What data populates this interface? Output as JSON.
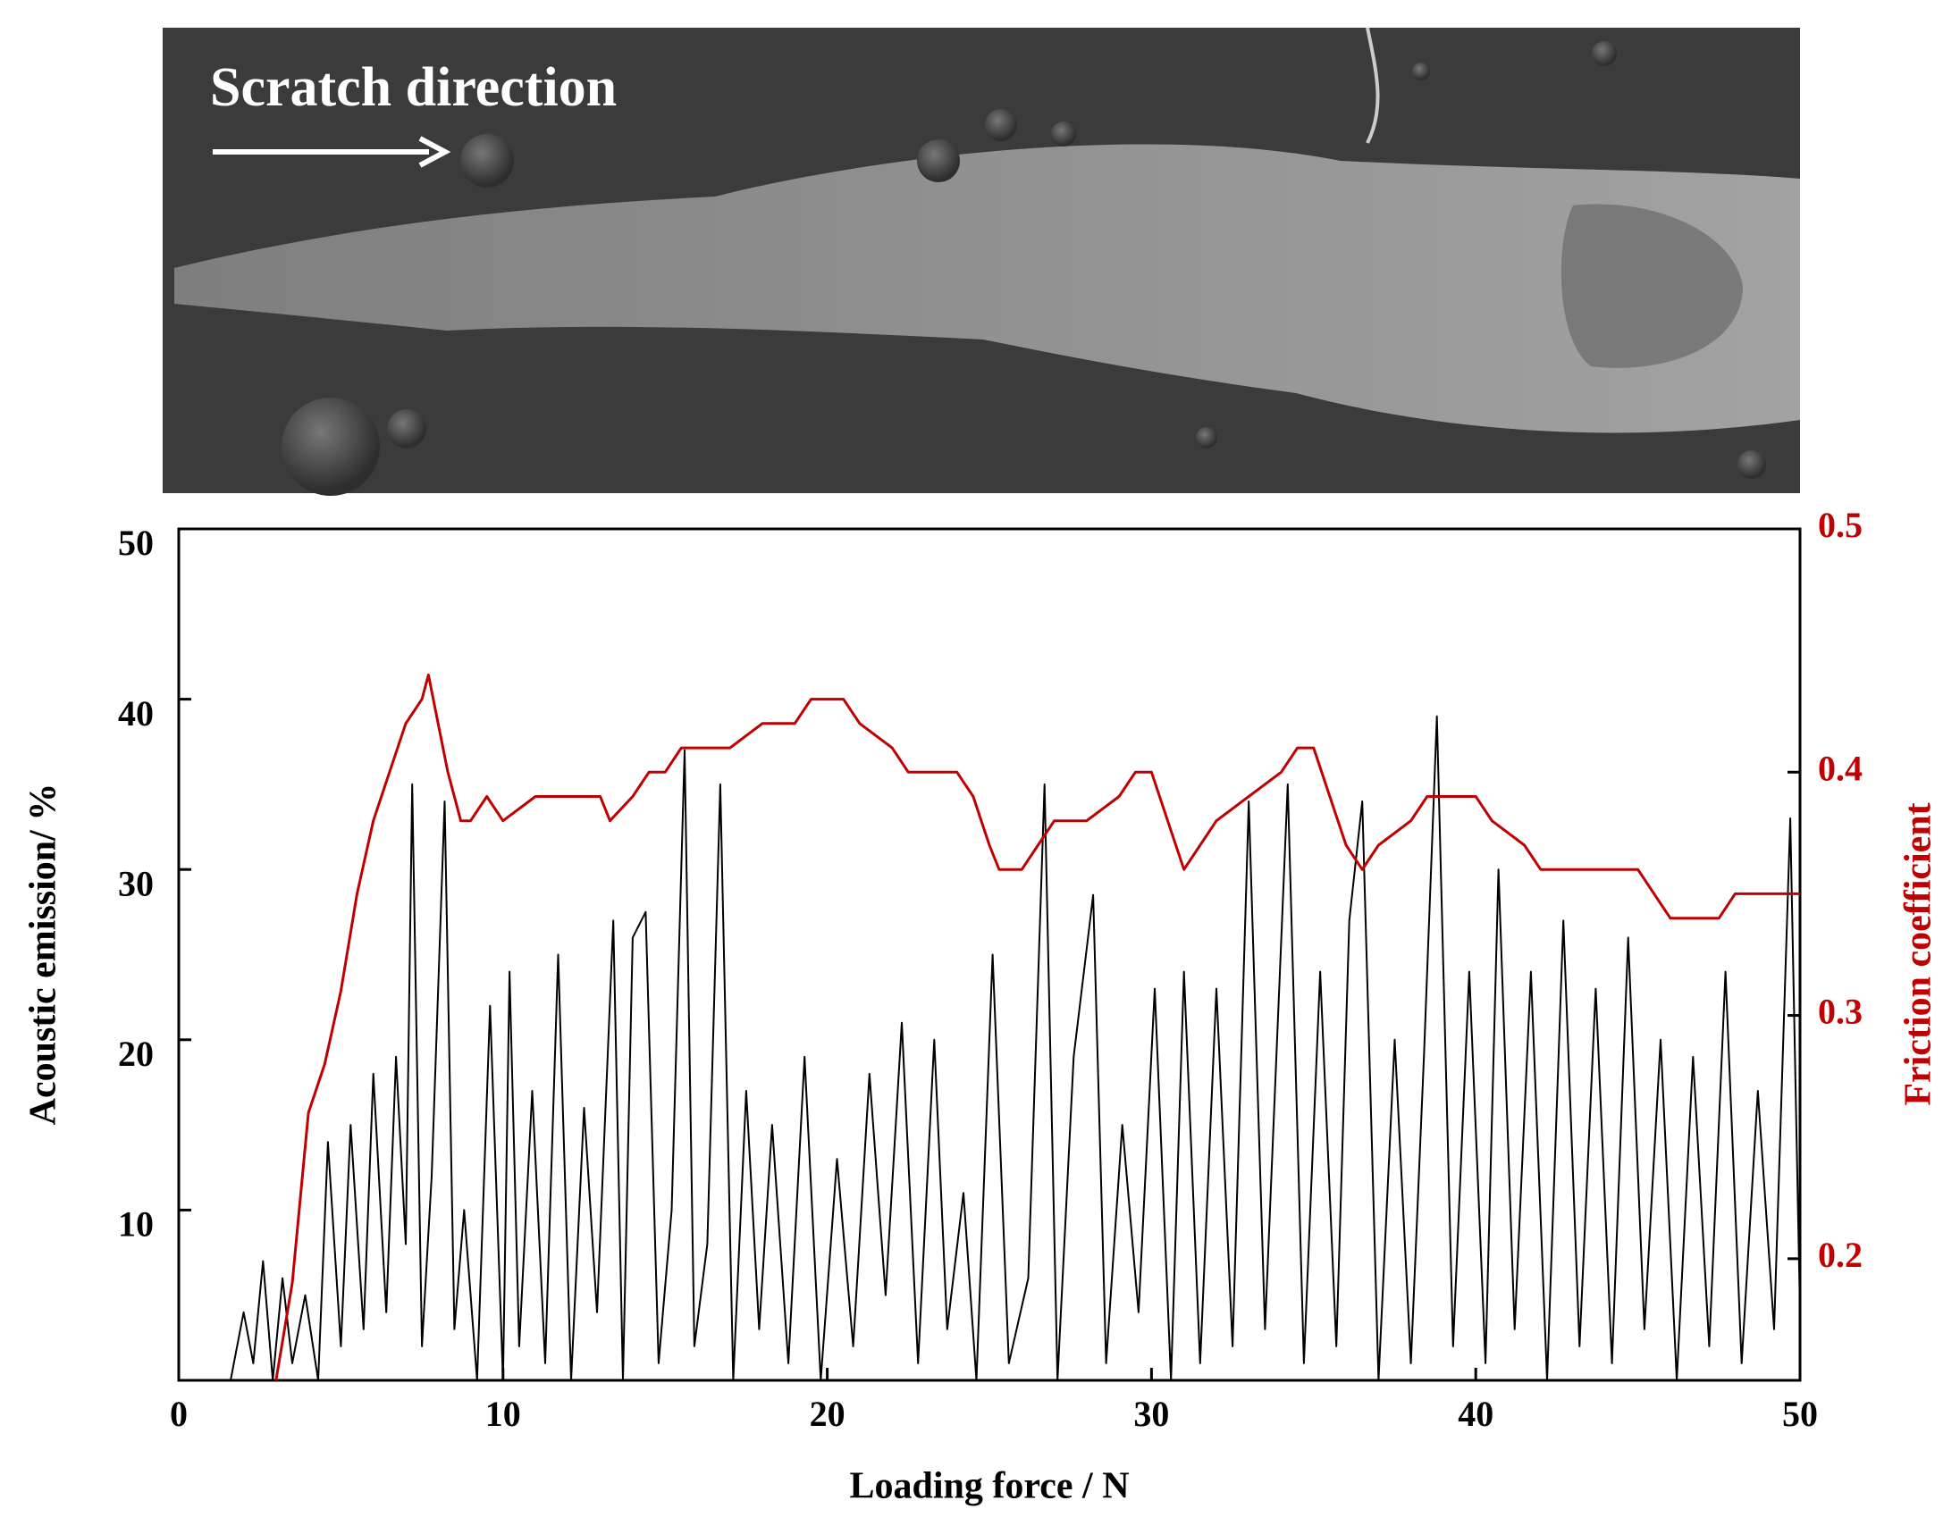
{
  "chart_data": {
    "type": "line",
    "image_label": "Scratch direction",
    "xlabel": "Loading force / N",
    "ylabel": "Acoustic emission/ %",
    "y2label": "Friction coefficient",
    "xlim": [
      0,
      50
    ],
    "xticks": [
      0,
      10,
      20,
      30,
      40,
      50
    ],
    "ylim": [
      0,
      50
    ],
    "yticks": [
      10,
      20,
      30,
      40,
      50
    ],
    "y2lim": [
      0.15,
      0.5
    ],
    "y2ticks": [
      0.2,
      0.3,
      0.4,
      0.5
    ],
    "series": [
      {
        "name": "Acoustic emission",
        "color": "#000000",
        "x": [
          1.6,
          2.0,
          2.3,
          2.6,
          2.9,
          3.2,
          3.5,
          3.9,
          4.3,
          4.6,
          5.0,
          5.3,
          5.7,
          6.0,
          6.4,
          6.7,
          7.0,
          7.2,
          7.5,
          7.8,
          8.2,
          8.5,
          8.8,
          9.2,
          9.6,
          10.0,
          10.2,
          10.5,
          10.9,
          11.3,
          11.7,
          12.1,
          12.5,
          12.9,
          13.4,
          13.7,
          14.0,
          14.4,
          14.8,
          15.2,
          15.6,
          15.9,
          16.3,
          16.7,
          17.1,
          17.5,
          17.9,
          18.3,
          18.8,
          19.3,
          19.8,
          20.3,
          20.8,
          21.3,
          21.8,
          22.3,
          22.8,
          23.3,
          23.7,
          24.2,
          24.6,
          25.1,
          25.6,
          26.2,
          26.7,
          27.1,
          27.6,
          28.2,
          28.6,
          29.1,
          29.6,
          30.1,
          30.6,
          31.0,
          31.5,
          32.0,
          32.5,
          33.0,
          33.5,
          34.2,
          34.7,
          35.2,
          35.7,
          36.1,
          36.5,
          37.0,
          37.5,
          38.0,
          38.4,
          38.8,
          39.3,
          39.8,
          40.3,
          40.7,
          41.2,
          41.7,
          42.2,
          42.7,
          43.2,
          43.7,
          44.2,
          44.7,
          45.2,
          45.7,
          46.2,
          46.7,
          47.2,
          47.7,
          48.2,
          48.7,
          49.2,
          49.7,
          50.0
        ],
        "values": [
          0,
          4,
          1,
          7,
          0,
          6,
          1,
          5,
          0,
          14,
          2,
          15,
          3,
          18,
          4,
          19,
          8,
          35,
          2,
          12,
          34,
          3,
          10,
          0,
          22,
          0,
          24,
          2,
          17,
          1,
          25,
          0,
          16,
          4,
          27,
          0,
          26,
          27.5,
          1,
          10,
          37,
          2,
          8,
          35,
          0,
          17,
          3,
          15,
          1,
          19,
          0,
          13,
          2,
          18,
          5,
          21,
          1,
          20,
          3,
          11,
          0,
          25,
          1,
          6,
          35,
          0,
          19,
          28.5,
          1,
          15,
          4,
          23,
          0,
          24,
          1,
          23,
          2,
          34,
          3,
          35,
          1,
          24,
          2,
          27,
          34,
          0,
          20,
          1,
          19,
          39,
          2,
          24,
          1,
          30,
          3,
          24,
          0,
          27,
          2,
          23,
          1,
          26,
          3,
          20,
          0,
          19,
          2,
          24,
          1,
          17,
          3,
          33,
          4
        ]
      },
      {
        "name": "Friction coefficient",
        "color": "#c00000",
        "axis": "y2",
        "x": [
          3,
          3.5,
          4,
          4.5,
          5,
          5.5,
          6,
          6.5,
          7,
          7.5,
          7.7,
          8,
          8.3,
          8.7,
          9,
          9.5,
          10,
          11,
          12,
          13,
          13.3,
          14,
          14.5,
          15,
          15.5,
          16.5,
          17,
          18,
          19,
          19.5,
          20.5,
          21,
          22,
          22.5,
          24,
          24.5,
          25,
          25.3,
          26,
          26.5,
          27,
          28,
          29,
          29.5,
          30,
          30.5,
          31,
          31.5,
          32,
          33,
          34,
          34.5,
          35,
          35.5,
          36,
          36.5,
          37,
          38,
          38.5,
          40,
          40.5,
          41.5,
          42,
          45,
          45.5,
          46,
          47.5,
          48,
          50
        ],
        "values": [
          0.15,
          0.19,
          0.26,
          0.28,
          0.31,
          0.35,
          0.38,
          0.4,
          0.42,
          0.43,
          0.44,
          0.42,
          0.4,
          0.38,
          0.38,
          0.39,
          0.38,
          0.39,
          0.39,
          0.39,
          0.38,
          0.39,
          0.4,
          0.4,
          0.41,
          0.41,
          0.41,
          0.42,
          0.42,
          0.43,
          0.43,
          0.42,
          0.41,
          0.4,
          0.4,
          0.39,
          0.37,
          0.36,
          0.36,
          0.37,
          0.38,
          0.38,
          0.39,
          0.4,
          0.4,
          0.38,
          0.36,
          0.37,
          0.38,
          0.39,
          0.4,
          0.41,
          0.41,
          0.39,
          0.37,
          0.36,
          0.37,
          0.38,
          0.39,
          0.39,
          0.38,
          0.37,
          0.36,
          0.36,
          0.35,
          0.34,
          0.34,
          0.35,
          0.35
        ]
      }
    ]
  }
}
